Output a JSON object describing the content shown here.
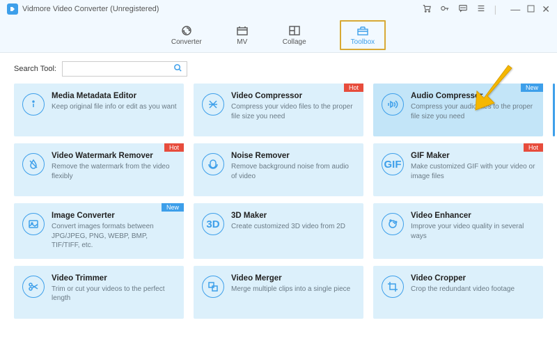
{
  "app": {
    "title": "Vidmore Video Converter (Unregistered)"
  },
  "tabs": [
    {
      "label": "Converter"
    },
    {
      "label": "MV"
    },
    {
      "label": "Collage"
    },
    {
      "label": "Toolbox"
    }
  ],
  "search": {
    "label": "Search Tool:",
    "placeholder": ""
  },
  "colors": {
    "accent": "#3d9fea",
    "card_bg": "#dcf0fb",
    "highlight_bg": "#c3e5f8",
    "hot": "#e74c3c",
    "new": "#3d9fea",
    "arrow": "#f5b700"
  },
  "tools": [
    {
      "title": "Media Metadata Editor",
      "desc": "Keep original file info or edit as you want",
      "icon": "info",
      "badge": null
    },
    {
      "title": "Video Compressor",
      "desc": "Compress your video files to the proper file size you need",
      "icon": "compress",
      "badge": "Hot"
    },
    {
      "title": "Audio Compressor",
      "desc": "Compress your audio files to the proper file size you need",
      "icon": "audio-compress",
      "badge": "New",
      "highlight": true
    },
    {
      "title": "Video Watermark Remover",
      "desc": "Remove the watermark from the video flexibly",
      "icon": "watermark",
      "badge": "Hot"
    },
    {
      "title": "Noise Remover",
      "desc": "Remove background noise from audio of video",
      "icon": "noise",
      "badge": null
    },
    {
      "title": "GIF Maker",
      "desc": "Make customized GIF with your video or image files",
      "icon": "gif",
      "badge": "Hot"
    },
    {
      "title": "Image Converter",
      "desc": "Convert images formats between JPG/JPEG, PNG, WEBP, BMP, TIF/TIFF, etc.",
      "icon": "image",
      "badge": "New"
    },
    {
      "title": "3D Maker",
      "desc": "Create customized 3D video from 2D",
      "icon": "3d",
      "badge": null
    },
    {
      "title": "Video Enhancer",
      "desc": "Improve your video quality in several ways",
      "icon": "enhance",
      "badge": null
    },
    {
      "title": "Video Trimmer",
      "desc": "Trim or cut your videos to the perfect length",
      "icon": "trim",
      "badge": null
    },
    {
      "title": "Video Merger",
      "desc": "Merge multiple clips into a single piece",
      "icon": "merge",
      "badge": null
    },
    {
      "title": "Video Cropper",
      "desc": "Crop the redundant video footage",
      "icon": "crop",
      "badge": null
    }
  ]
}
